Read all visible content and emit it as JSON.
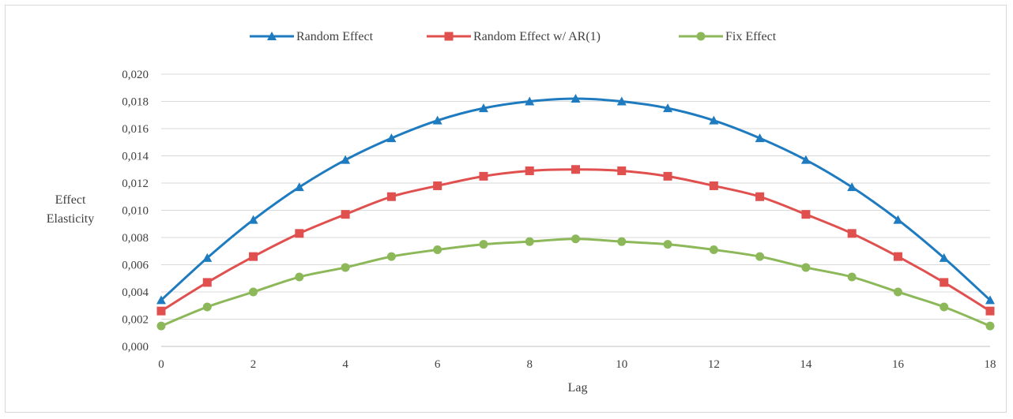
{
  "chart_data": {
    "type": "line",
    "xlabel": "Lag",
    "ylabel": [
      "Effect",
      "Elasticity"
    ],
    "x": [
      0,
      1,
      2,
      3,
      4,
      5,
      6,
      7,
      8,
      9,
      10,
      11,
      12,
      13,
      14,
      15,
      16,
      17,
      18
    ],
    "xticks": [
      0,
      2,
      4,
      6,
      8,
      10,
      12,
      14,
      16,
      18
    ],
    "ylim": [
      0,
      0.02
    ],
    "yticks": [
      0.0,
      0.002,
      0.004,
      0.006,
      0.008,
      0.01,
      0.012,
      0.014,
      0.016,
      0.018,
      0.02
    ],
    "ytick_labels": [
      "0,000",
      "0,002",
      "0,004",
      "0,006",
      "0,008",
      "0,010",
      "0,012",
      "0,014",
      "0,016",
      "0,018",
      "0,020"
    ],
    "grid": "horizontal",
    "legend_position": "top",
    "series": [
      {
        "name": "Random Effect",
        "color": "#1f7bbf",
        "marker": "triangle",
        "values": [
          0.0034,
          0.0065,
          0.0093,
          0.0117,
          0.0137,
          0.0153,
          0.0166,
          0.0175,
          0.018,
          0.0182,
          0.018,
          0.0175,
          0.0166,
          0.0153,
          0.0137,
          0.0117,
          0.0093,
          0.0065,
          0.0034
        ]
      },
      {
        "name": "Random Effect w/ AR(1)",
        "color": "#e0504f",
        "marker": "square",
        "values": [
          0.0026,
          0.0047,
          0.0066,
          0.0083,
          0.0097,
          0.011,
          0.0118,
          0.0125,
          0.0129,
          0.013,
          0.0129,
          0.0125,
          0.0118,
          0.011,
          0.0097,
          0.0083,
          0.0066,
          0.0047,
          0.0026
        ]
      },
      {
        "name": "Fix Effect",
        "color": "#8db859",
        "marker": "circle",
        "values": [
          0.0015,
          0.0029,
          0.004,
          0.0051,
          0.0058,
          0.0066,
          0.0071,
          0.0075,
          0.0077,
          0.0079,
          0.0077,
          0.0075,
          0.0071,
          0.0066,
          0.0058,
          0.0051,
          0.004,
          0.0029,
          0.0015
        ]
      }
    ]
  }
}
